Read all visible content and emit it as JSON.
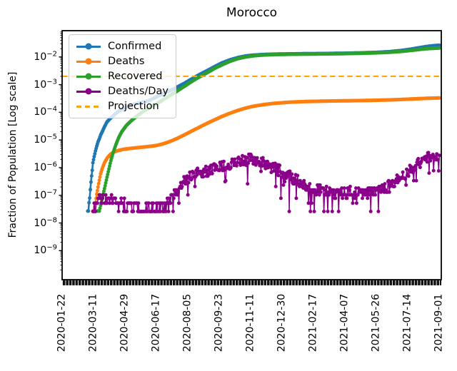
{
  "chart_data": {
    "type": "line",
    "title": "Morocco",
    "xlabel": "",
    "ylabel": "Fraction of Population [Log scale]",
    "yscale": "log",
    "ylim_log10": [
      -10.05,
      -1.05
    ],
    "x_range_days": [
      0,
      591
    ],
    "grid": false,
    "legend_position": "upper left",
    "y_ticks_exponents": [
      -2,
      -3,
      -4,
      -5,
      -6,
      -7,
      -8,
      -9
    ],
    "x_ticks": {
      "days": [
        0,
        49,
        98,
        147,
        196,
        245,
        294,
        343,
        392,
        441,
        490,
        539,
        588
      ],
      "labels": [
        "2020-01-22",
        "2020-03-11",
        "2020-04-29",
        "2020-06-17",
        "2020-08-05",
        "2020-09-23",
        "2020-11-11",
        "2020-12-30",
        "2021-02-17",
        "2021-04-07",
        "2021-05-26",
        "2021-07-14",
        "2021-09-01"
      ]
    },
    "series": [
      {
        "name": "Confirmed",
        "color": "#1f77b4",
        "style": "line-dot",
        "anchors": [
          [
            40,
            2.7e-08
          ],
          [
            41,
            2.7e-08
          ],
          [
            42,
            5.4e-08
          ],
          [
            43,
            8e-08
          ],
          [
            44,
            1.6e-07
          ],
          [
            45,
            3e-07
          ],
          [
            46,
            5e-07
          ],
          [
            47,
            8e-07
          ],
          [
            48,
            1.5e-06
          ],
          [
            50,
            2.5e-06
          ],
          [
            52,
            4e-06
          ],
          [
            54,
            6e-06
          ],
          [
            56,
            8.5e-06
          ],
          [
            58,
            1.1e-05
          ],
          [
            60,
            1.5e-05
          ],
          [
            63,
            2.1e-05
          ],
          [
            66,
            3e-05
          ],
          [
            70,
            4.5e-05
          ],
          [
            75,
            6e-05
          ],
          [
            81,
            8e-05
          ],
          [
            88,
            0.00011
          ],
          [
            96,
            0.00014
          ],
          [
            105,
            0.00017
          ],
          [
            115,
            0.000205
          ],
          [
            125,
            0.00023
          ],
          [
            135,
            0.00026
          ],
          [
            147,
            0.00036
          ],
          [
            158,
            0.00048
          ],
          [
            168,
            0.0006
          ],
          [
            178,
            0.00078
          ],
          [
            190,
            0.0011
          ],
          [
            202,
            0.0016
          ],
          [
            214,
            0.0023
          ],
          [
            226,
            0.0032
          ],
          [
            238,
            0.0045
          ],
          [
            250,
            0.0062
          ],
          [
            262,
            0.0079
          ],
          [
            274,
            0.0095
          ],
          [
            286,
            0.0108
          ],
          [
            298,
            0.0116
          ],
          [
            312,
            0.0122
          ],
          [
            330,
            0.0126
          ],
          [
            355,
            0.0129
          ],
          [
            380,
            0.0131
          ],
          [
            410,
            0.0133
          ],
          [
            440,
            0.0136
          ],
          [
            465,
            0.014
          ],
          [
            490,
            0.0146
          ],
          [
            510,
            0.0155
          ],
          [
            528,
            0.017
          ],
          [
            544,
            0.0192
          ],
          [
            558,
            0.0218
          ],
          [
            570,
            0.0242
          ],
          [
            580,
            0.0256
          ],
          [
            588,
            0.0265
          ]
        ]
      },
      {
        "name": "Deaths",
        "color": "#ff7f0e",
        "style": "line-dot",
        "anchors": [
          [
            48,
            2.7e-08
          ],
          [
            50,
            2.7e-08
          ],
          [
            52,
            5.4e-08
          ],
          [
            54,
            1.1e-07
          ],
          [
            56,
            2e-07
          ],
          [
            58,
            3.5e-07
          ],
          [
            60,
            6e-07
          ],
          [
            63,
            1e-06
          ],
          [
            66,
            1.5e-06
          ],
          [
            70,
            2.2e-06
          ],
          [
            75,
            3e-06
          ],
          [
            81,
            3.7e-06
          ],
          [
            88,
            4.2e-06
          ],
          [
            96,
            4.6e-06
          ],
          [
            105,
            4.9e-06
          ],
          [
            115,
            5.2e-06
          ],
          [
            125,
            5.5e-06
          ],
          [
            135,
            5.8e-06
          ],
          [
            147,
            6.3e-06
          ],
          [
            157,
            7.2e-06
          ],
          [
            167,
            8.6e-06
          ],
          [
            178,
            1.1e-05
          ],
          [
            190,
            1.5e-05
          ],
          [
            202,
            2.1e-05
          ],
          [
            214,
            2.9e-05
          ],
          [
            226,
            4e-05
          ],
          [
            238,
            5.4e-05
          ],
          [
            250,
            7.2e-05
          ],
          [
            262,
            9.3e-05
          ],
          [
            274,
            0.000117
          ],
          [
            286,
            0.000142
          ],
          [
            298,
            0.000165
          ],
          [
            312,
            0.000187
          ],
          [
            330,
            0.00021
          ],
          [
            355,
            0.000232
          ],
          [
            380,
            0.000245
          ],
          [
            410,
            0.000254
          ],
          [
            440,
            0.00026
          ],
          [
            465,
            0.000265
          ],
          [
            490,
            0.000272
          ],
          [
            510,
            0.00028
          ],
          [
            528,
            0.00029
          ],
          [
            544,
            0.000302
          ],
          [
            558,
            0.000312
          ],
          [
            570,
            0.00032
          ],
          [
            580,
            0.000326
          ],
          [
            588,
            0.00033
          ]
        ]
      },
      {
        "name": "Recovered",
        "color": "#2ca02c",
        "style": "line-dot",
        "anchors": [
          [
            55,
            2.7e-08
          ],
          [
            58,
            2.7e-08
          ],
          [
            61,
            5.4e-08
          ],
          [
            64,
            1.1e-07
          ],
          [
            67,
            2.2e-07
          ],
          [
            70,
            4.5e-07
          ],
          [
            73,
            9e-07
          ],
          [
            76,
            1.8e-06
          ],
          [
            80,
            3.8e-06
          ],
          [
            84,
            7e-06
          ],
          [
            88,
            1.2e-05
          ],
          [
            93,
            2e-05
          ],
          [
            100,
            3.3e-05
          ],
          [
            108,
            5e-05
          ],
          [
            117,
            7.5e-05
          ],
          [
            126,
            0.000105
          ],
          [
            136,
            0.000145
          ],
          [
            147,
            0.0002
          ],
          [
            157,
            0.00028
          ],
          [
            167,
            0.00039
          ],
          [
            178,
            0.00056
          ],
          [
            190,
            0.00085
          ],
          [
            202,
            0.0013
          ],
          [
            214,
            0.0019
          ],
          [
            226,
            0.0027
          ],
          [
            238,
            0.0039
          ],
          [
            250,
            0.0053
          ],
          [
            262,
            0.007
          ],
          [
            274,
            0.0087
          ],
          [
            286,
            0.01
          ],
          [
            298,
            0.011
          ],
          [
            312,
            0.0117
          ],
          [
            330,
            0.0122
          ],
          [
            355,
            0.0125
          ],
          [
            380,
            0.0127
          ],
          [
            410,
            0.0129
          ],
          [
            440,
            0.0132
          ],
          [
            465,
            0.0136
          ],
          [
            490,
            0.0141
          ],
          [
            510,
            0.0148
          ],
          [
            528,
            0.0158
          ],
          [
            544,
            0.0173
          ],
          [
            558,
            0.0188
          ],
          [
            570,
            0.02
          ],
          [
            580,
            0.0206
          ],
          [
            588,
            0.021
          ]
        ]
      },
      {
        "name": "Deaths/Day",
        "color": "#8b008b",
        "style": "line-dot",
        "noisy": true,
        "quantum": 2.6e-08,
        "noise": {
          "seed": 9,
          "amplitude_log": 0.2,
          "dip_probability": 0.07,
          "dip_factor_min": 0.04,
          "dip_factor_max": 0.45
        },
        "anchors": [
          [
            48,
            2.7e-08
          ],
          [
            55,
            6e-08
          ],
          [
            62,
            8e-08
          ],
          [
            70,
            7e-08
          ],
          [
            80,
            6e-08
          ],
          [
            90,
            5e-08
          ],
          [
            100,
            4.5e-08
          ],
          [
            110,
            4e-08
          ],
          [
            120,
            3.5e-08
          ],
          [
            130,
            3.2e-08
          ],
          [
            140,
            3e-08
          ],
          [
            150,
            3.2e-08
          ],
          [
            160,
            4e-08
          ],
          [
            170,
            7e-08
          ],
          [
            180,
            1.6e-07
          ],
          [
            190,
            3e-07
          ],
          [
            200,
            4.5e-07
          ],
          [
            210,
            6e-07
          ],
          [
            220,
            7e-07
          ],
          [
            230,
            7.8e-07
          ],
          [
            240,
            9e-07
          ],
          [
            250,
            1.1e-06
          ],
          [
            260,
            1.3e-06
          ],
          [
            270,
            1.5e-06
          ],
          [
            280,
            1.75e-06
          ],
          [
            290,
            1.95e-06
          ],
          [
            300,
            1.85e-06
          ],
          [
            310,
            1.55e-06
          ],
          [
            320,
            1.25e-06
          ],
          [
            330,
            9.5e-07
          ],
          [
            340,
            7.5e-07
          ],
          [
            350,
            5.5e-07
          ],
          [
            360,
            4e-07
          ],
          [
            370,
            3e-07
          ],
          [
            380,
            2.3e-07
          ],
          [
            390,
            1.9e-07
          ],
          [
            400,
            1.6e-07
          ],
          [
            412,
            1.4e-07
          ],
          [
            424,
            1.3e-07
          ],
          [
            436,
            1.25e-07
          ],
          [
            448,
            1.3e-07
          ],
          [
            460,
            1.25e-07
          ],
          [
            472,
            1.2e-07
          ],
          [
            484,
            1.3e-07
          ],
          [
            495,
            1.5e-07
          ],
          [
            505,
            1.9e-07
          ],
          [
            515,
            2.6e-07
          ],
          [
            525,
            3.8e-07
          ],
          [
            535,
            5.8e-07
          ],
          [
            545,
            9e-07
          ],
          [
            553,
            1.3e-06
          ],
          [
            560,
            1.7e-06
          ],
          [
            567,
            2.1e-06
          ],
          [
            573,
            2.4e-06
          ],
          [
            579,
            2.5e-06
          ],
          [
            584,
            2.4e-06
          ],
          [
            588,
            2.3e-06
          ]
        ]
      },
      {
        "name": "Projection",
        "color": "#ffa500",
        "style": "dashed",
        "value": 0.002
      }
    ]
  }
}
